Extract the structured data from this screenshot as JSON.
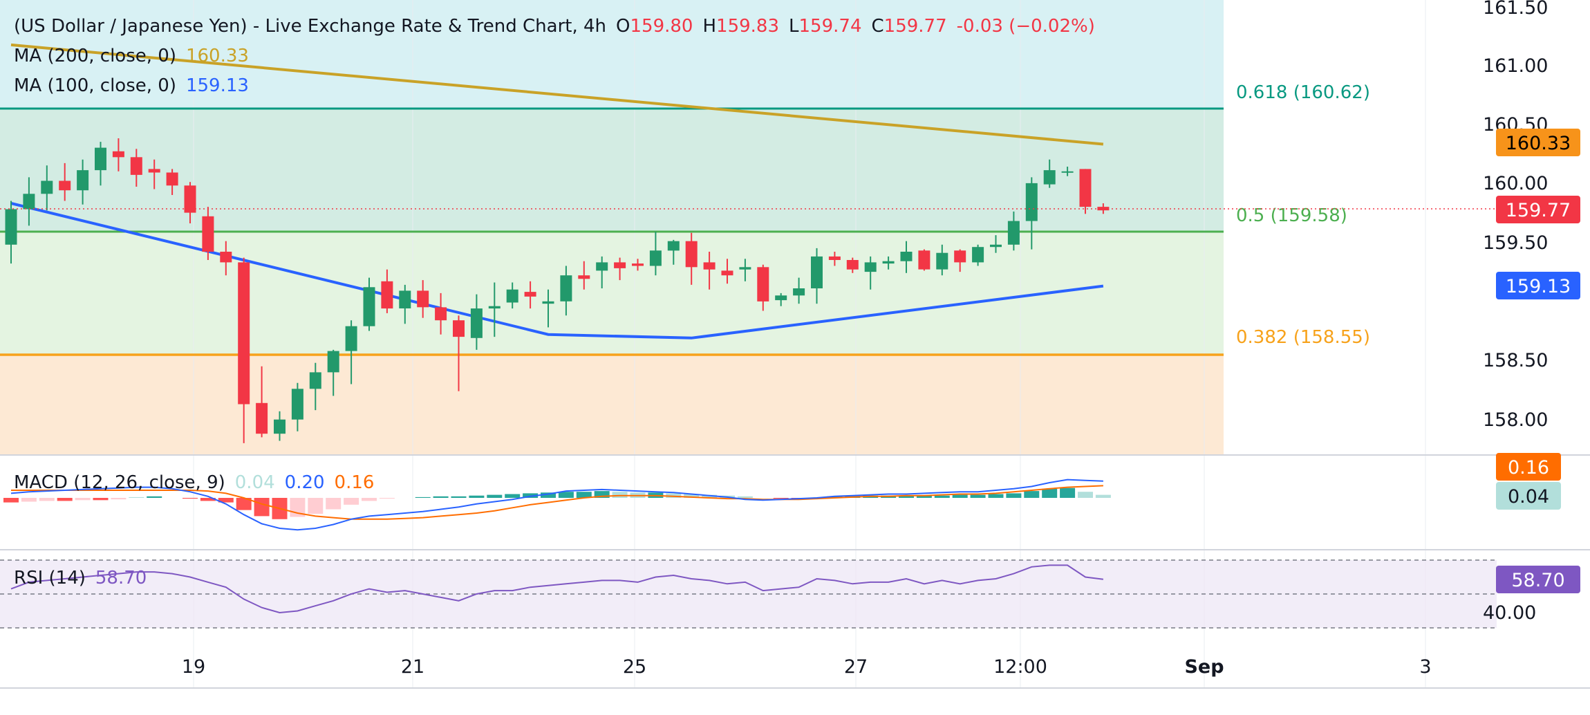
{
  "legend": {
    "title": "(US Dollar / Japanese Yen) - Live Exchange Rate & Trend Chart, 4h",
    "o_label": "O",
    "o_value": "159.80",
    "h_label": "H",
    "h_value": "159.83",
    "l_label": "L",
    "l_value": "159.74",
    "c_label": "C",
    "c_value": "159.77",
    "change": "-0.03 (−0.02%)",
    "ma200_label": "MA (200, close, 0)",
    "ma200_value": "160.33",
    "ma100_label": "MA (100, close, 0)",
    "ma100_value": "159.13"
  },
  "fib": {
    "f618": "0.618 (160.62)",
    "f50": "0.5 (159.58)",
    "f382": "0.382 (158.55)"
  },
  "price_axis": {
    "ticks": [
      "161.50",
      "161.00",
      "160.50",
      "160.00",
      "159.50",
      "158.50",
      "158.00"
    ],
    "ma200_tag": "160.33",
    "last_tag": "159.77",
    "ma100_tag": "159.13"
  },
  "macd": {
    "label": "MACD (12, 26, close, 9)",
    "hist_value": "0.04",
    "macd_value": "0.20",
    "signal_value": "0.16",
    "tag_signal": "0.16",
    "tag_hist": "0.04"
  },
  "rsi": {
    "label": "RSI (14)",
    "value": "58.70",
    "tag_value": "58.70",
    "tick_40": "40.00"
  },
  "time_axis": [
    "19",
    "21",
    "25",
    "27",
    "12:00",
    "Sep",
    "3"
  ],
  "colors": {
    "up": "#26a69a",
    "up_dark": "#22996b",
    "down": "#f23645",
    "ma200": "#c9a227",
    "ma100": "#2962ff",
    "fib618": "#089981",
    "fib50": "#4caf50",
    "fib382": "#f7a21b",
    "rsi": "#7e57c2"
  },
  "chart_data": {
    "type": "candlestick",
    "symbol": "USD/JPY",
    "interval": "4h",
    "ylim": [
      157.7,
      161.55
    ],
    "fib_levels": [
      {
        "ratio": 0.618,
        "price": 160.62
      },
      {
        "ratio": 0.5,
        "price": 159.58
      },
      {
        "ratio": 0.382,
        "price": 158.55
      }
    ],
    "candles": [
      [
        159.48,
        159.85,
        159.32,
        159.78
      ],
      [
        159.78,
        160.05,
        159.64,
        159.91
      ],
      [
        159.91,
        160.15,
        159.77,
        160.02
      ],
      [
        160.02,
        160.17,
        159.85,
        159.94
      ],
      [
        159.94,
        160.2,
        159.82,
        160.11
      ],
      [
        160.11,
        160.35,
        159.98,
        160.3
      ],
      [
        160.27,
        160.38,
        160.1,
        160.22
      ],
      [
        160.22,
        160.29,
        159.97,
        160.07
      ],
      [
        160.12,
        160.2,
        159.95,
        160.09
      ],
      [
        160.09,
        160.12,
        159.9,
        159.98
      ],
      [
        159.98,
        160.01,
        159.66,
        159.75
      ],
      [
        159.72,
        159.8,
        159.35,
        159.42
      ],
      [
        159.42,
        159.51,
        159.22,
        159.33
      ],
      [
        159.33,
        159.37,
        157.8,
        158.13
      ],
      [
        158.14,
        158.45,
        157.85,
        157.88
      ],
      [
        157.88,
        158.07,
        157.82,
        158.0
      ],
      [
        158.0,
        158.31,
        157.9,
        158.26
      ],
      [
        158.26,
        158.48,
        158.08,
        158.4
      ],
      [
        158.4,
        158.59,
        158.2,
        158.58
      ],
      [
        158.58,
        158.84,
        158.3,
        158.79
      ],
      [
        158.79,
        159.2,
        158.75,
        159.12
      ],
      [
        159.17,
        159.27,
        158.9,
        158.94
      ],
      [
        158.94,
        159.14,
        158.81,
        159.09
      ],
      [
        159.09,
        159.18,
        158.86,
        158.95
      ],
      [
        158.95,
        159.07,
        158.72,
        158.84
      ],
      [
        158.84,
        158.88,
        158.24,
        158.7
      ],
      [
        158.69,
        159.06,
        158.59,
        158.94
      ],
      [
        158.94,
        159.16,
        158.7,
        158.96
      ],
      [
        158.99,
        159.16,
        158.94,
        159.1
      ],
      [
        159.08,
        159.17,
        158.94,
        159.04
      ],
      [
        158.98,
        159.1,
        158.78,
        159.0
      ],
      [
        159.0,
        159.3,
        158.88,
        159.22
      ],
      [
        159.22,
        159.34,
        159.1,
        159.19
      ],
      [
        159.26,
        159.38,
        159.11,
        159.33
      ],
      [
        159.33,
        159.37,
        159.18,
        159.28
      ],
      [
        159.32,
        159.36,
        159.26,
        159.3
      ],
      [
        159.3,
        159.59,
        159.22,
        159.43
      ],
      [
        159.43,
        159.52,
        159.31,
        159.51
      ],
      [
        159.51,
        159.58,
        159.14,
        159.29
      ],
      [
        159.33,
        159.42,
        159.1,
        159.27
      ],
      [
        159.26,
        159.36,
        159.15,
        159.22
      ],
      [
        159.27,
        159.36,
        159.17,
        159.29
      ],
      [
        159.29,
        159.31,
        158.92,
        159.0
      ],
      [
        159.01,
        159.07,
        158.96,
        159.05
      ],
      [
        159.05,
        159.2,
        158.98,
        159.11
      ],
      [
        159.11,
        159.45,
        158.98,
        159.38
      ],
      [
        159.38,
        159.42,
        159.3,
        159.35
      ],
      [
        159.35,
        159.37,
        159.24,
        159.27
      ],
      [
        159.25,
        159.38,
        159.1,
        159.33
      ],
      [
        159.32,
        159.38,
        159.27,
        159.34
      ],
      [
        159.34,
        159.51,
        159.24,
        159.42
      ],
      [
        159.43,
        159.44,
        159.26,
        159.27
      ],
      [
        159.27,
        159.48,
        159.22,
        159.41
      ],
      [
        159.43,
        159.44,
        159.25,
        159.33
      ],
      [
        159.33,
        159.48,
        159.3,
        159.46
      ],
      [
        159.46,
        159.56,
        159.41,
        159.48
      ],
      [
        159.48,
        159.76,
        159.43,
        159.68
      ],
      [
        159.68,
        160.05,
        159.44,
        160.0
      ],
      [
        159.99,
        160.2,
        159.96,
        160.11
      ],
      [
        160.09,
        160.14,
        160.06,
        160.1
      ],
      [
        160.12,
        160.12,
        159.74,
        159.8
      ],
      [
        159.8,
        159.83,
        159.74,
        159.77
      ]
    ],
    "ma200": [
      [
        0,
        161.17
      ],
      [
        61,
        160.33
      ]
    ],
    "ma100": [
      [
        0,
        159.83
      ],
      [
        30,
        158.72
      ],
      [
        38,
        158.69
      ],
      [
        61,
        159.13
      ]
    ],
    "macd": {
      "macd_last": 0.2,
      "signal_last": 0.16,
      "hist_last": 0.04
    },
    "rsi_last": 58.7
  }
}
